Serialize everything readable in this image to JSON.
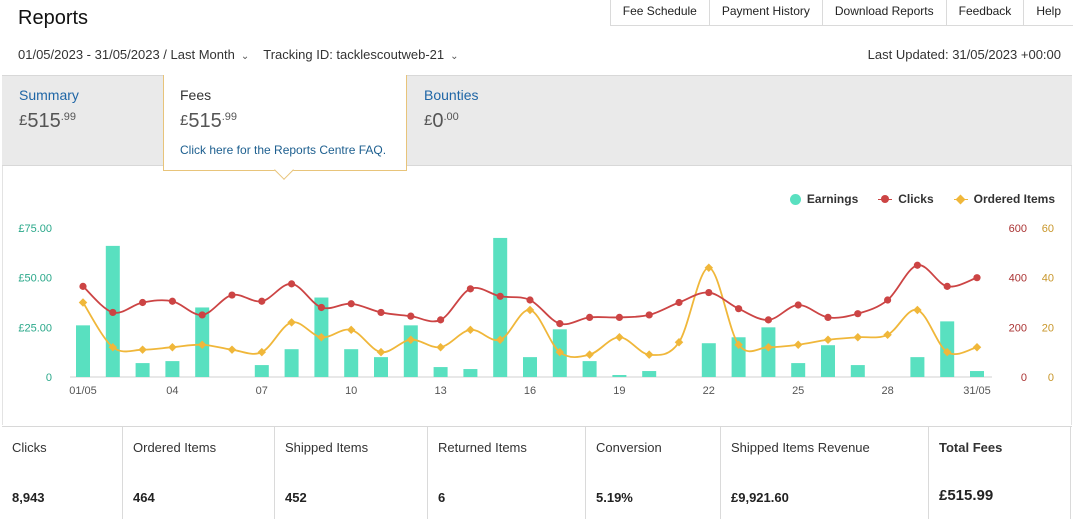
{
  "page": {
    "title": "Reports"
  },
  "topnav": [
    "Fee Schedule",
    "Payment History",
    "Download Reports",
    "Feedback",
    "Help"
  ],
  "filters": {
    "date_range": "01/05/2023 - 31/05/2023 / Last Month",
    "tracking": "Tracking ID: tacklescoutweb-21"
  },
  "last_updated": "Last Updated: 31/05/2023 +00:00",
  "tabs": {
    "summary": {
      "label": "Summary",
      "currency": "£",
      "whole": "515",
      "decimal": ".99"
    },
    "fees": {
      "label": "Fees",
      "currency": "£",
      "whole": "515",
      "decimal": ".99",
      "faq_link": "Click here for the Reports Centre FAQ."
    },
    "bounties": {
      "label": "Bounties",
      "currency": "£",
      "whole": "0",
      "decimal": ".00"
    }
  },
  "legend": {
    "earnings": "Earnings",
    "clicks": "Clicks",
    "ordered": "Ordered Items"
  },
  "colors": {
    "earnings": "#59e0c0",
    "clicks": "#cc4444",
    "ordered": "#f0b73a",
    "tab_link": "#1f66a6",
    "earnings_axis": "#2aa88a",
    "clicks_axis": "#a33",
    "ordered_axis": "#c8962a"
  },
  "chart_data": {
    "type": "bar",
    "x": [
      "01/05",
      "02/05",
      "03/05",
      "04/05",
      "05/05",
      "06/05",
      "07/05",
      "08/05",
      "09/05",
      "10/05",
      "11/05",
      "12/05",
      "13/05",
      "14/05",
      "15/05",
      "16/05",
      "17/05",
      "18/05",
      "19/05",
      "20/05",
      "21/05",
      "22/05",
      "23/05",
      "24/05",
      "25/05",
      "26/05",
      "27/05",
      "28/05",
      "29/05",
      "30/05",
      "31/05"
    ],
    "x_tick_labels": [
      "01/05",
      "04",
      "07",
      "10",
      "13",
      "16",
      "19",
      "22",
      "25",
      "28",
      "31/05"
    ],
    "series": [
      {
        "name": "Earnings",
        "type": "bar",
        "axis": "left",
        "values": [
          26,
          66,
          7,
          8,
          35,
          0,
          6,
          14,
          40,
          14,
          10,
          26,
          5,
          4,
          70,
          10,
          24,
          8,
          1,
          3,
          0,
          17,
          20,
          25,
          7,
          16,
          6,
          0,
          10,
          28,
          3
        ]
      },
      {
        "name": "Clicks",
        "type": "line",
        "axis": "right-1",
        "values": [
          365,
          260,
          300,
          305,
          250,
          330,
          305,
          375,
          280,
          295,
          260,
          245,
          230,
          355,
          325,
          310,
          215,
          240,
          240,
          250,
          300,
          340,
          275,
          230,
          290,
          240,
          255,
          310,
          450,
          365,
          400
        ]
      },
      {
        "name": "Ordered Items",
        "type": "line",
        "axis": "right-2",
        "values": [
          30,
          12,
          11,
          12,
          13,
          11,
          10,
          22,
          16,
          19,
          10,
          15,
          12,
          19,
          15,
          27,
          10,
          9,
          16,
          9,
          14,
          44,
          13,
          12,
          13,
          15,
          16,
          17,
          27,
          10,
          12
        ]
      }
    ],
    "y_left": {
      "ticks": [
        "0",
        "£25.00",
        "£50.00",
        "£75.00"
      ],
      "range": [
        0,
        75
      ]
    },
    "y_right_1": {
      "ticks": [
        "0",
        "200",
        "400",
        "600"
      ],
      "range": [
        0,
        600
      ]
    },
    "y_right_2": {
      "ticks": [
        "0",
        "20",
        "40",
        "60"
      ],
      "range": [
        0,
        60
      ]
    },
    "legend_position": "top-right",
    "grid": false
  },
  "metrics": [
    {
      "label": "Clicks",
      "value": "8,943"
    },
    {
      "label": "Ordered Items",
      "value": "464"
    },
    {
      "label": "Shipped Items",
      "value": "452"
    },
    {
      "label": "Returned Items",
      "value": "6"
    },
    {
      "label": "Conversion",
      "value": "5.19%"
    },
    {
      "label": "Shipped Items Revenue",
      "value": "£9,921.60"
    },
    {
      "label": "Total Fees",
      "value": "£515.99"
    }
  ]
}
